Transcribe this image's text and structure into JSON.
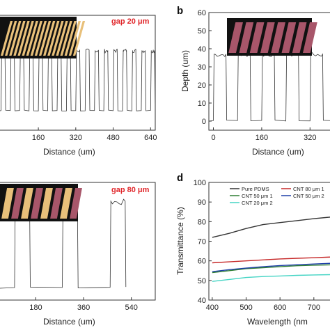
{
  "panels": {
    "b": "b",
    "d": "d"
  },
  "chart_data": [
    {
      "id": "a",
      "type": "line",
      "annotation": "gap 20 μm",
      "xlabel": "Distance (um)",
      "ylabel": "",
      "xticks": [
        "160",
        "320",
        "480",
        "640"
      ],
      "xlim": [
        -10,
        660
      ],
      "ylim": [
        -12,
        60
      ],
      "high_depth": 38,
      "low_depth": 0,
      "period": 40,
      "duty": 0.5,
      "start": 0
    },
    {
      "id": "b",
      "type": "line",
      "xlabel": "Distance (um)",
      "ylabel": "Depth (um)",
      "xticks": [
        "0",
        "160",
        "320"
      ],
      "yticks": [
        "0",
        "10",
        "20",
        "30",
        "40",
        "50",
        "60"
      ],
      "xlim": [
        -15,
        400
      ],
      "ylim": [
        -5,
        60
      ],
      "high_depth": 37,
      "low_depth": 0,
      "period": 80,
      "duty": 0.55,
      "start": 0
    },
    {
      "id": "c",
      "type": "line",
      "annotation": "gap 80 μm",
      "xlabel": "Distance (um)",
      "ylabel": "",
      "xticks": [
        "180",
        "360",
        "540"
      ],
      "xlim": [
        40,
        630
      ],
      "ylim": [
        -5,
        45
      ],
      "high_depth": 37,
      "low_depth": 0,
      "period": 180,
      "duty": 0.33,
      "start": 100
    },
    {
      "id": "d",
      "type": "line",
      "xlabel": "Wavelength (nm",
      "ylabel": "Transmittance (%)",
      "xticks": [
        "400",
        "500",
        "600",
        "700"
      ],
      "yticks": [
        "40",
        "50",
        "60",
        "70",
        "80",
        "90",
        "100"
      ],
      "xlim": [
        390,
        760
      ],
      "ylim": [
        40,
        100
      ],
      "legend": [
        "Pure PDMS",
        "CNT 80 μm 1",
        "CNT 50 μm 1",
        "CNT 50 μm 2",
        "CNT 20 μm 2"
      ],
      "series": [
        {
          "name": "Pure PDMS",
          "color": "#333333",
          "x": [
            400,
            450,
            500,
            550,
            600,
            650,
            700,
            760
          ],
          "y": [
            72,
            74,
            76.5,
            78.5,
            79.5,
            80.5,
            81.5,
            82.5
          ]
        },
        {
          "name": "CNT 80 μm 1",
          "color": "#c62828",
          "x": [
            400,
            450,
            500,
            550,
            600,
            650,
            700,
            760
          ],
          "y": [
            59,
            59.5,
            60,
            60.5,
            61,
            61.3,
            61.6,
            62
          ]
        },
        {
          "name": "CNT 50 μm 1",
          "color": "#2e7d32",
          "x": [
            400,
            450,
            500,
            550,
            600,
            650,
            700,
            760
          ],
          "y": [
            54,
            55,
            56,
            56.5,
            57,
            57.5,
            57.8,
            58
          ]
        },
        {
          "name": "CNT 50 μm 2",
          "color": "#1e3fa8",
          "x": [
            400,
            450,
            500,
            550,
            600,
            650,
            700,
            760
          ],
          "y": [
            54.5,
            55.5,
            56.3,
            57,
            57.6,
            58,
            58.4,
            58.8
          ]
        },
        {
          "name": "CNT 20 μm 2",
          "color": "#44d4c4",
          "x": [
            400,
            450,
            500,
            550,
            600,
            650,
            700,
            760
          ],
          "y": [
            49.5,
            50.5,
            51.5,
            52,
            52.3,
            52.6,
            52.8,
            53
          ]
        }
      ]
    }
  ],
  "colors": {
    "trace": "#333333",
    "stripe_gold": "#e8c07a",
    "stripe_pink": "#a8566a",
    "inset_bg": "#111111"
  }
}
